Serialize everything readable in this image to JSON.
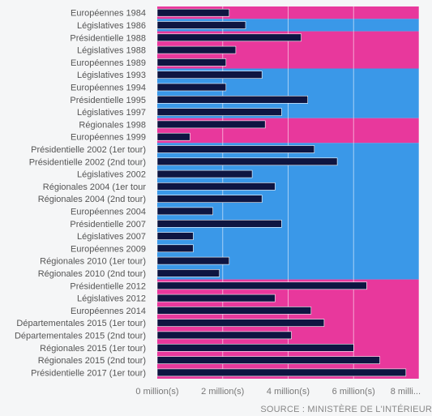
{
  "chart_data": {
    "type": "bar",
    "orientation": "horizontal",
    "categories": [
      "Européennes 1984",
      "Législatives 1986",
      "Présidentielle 1988",
      "Législatives 1988",
      "Européennes 1989",
      "Législatives 1993",
      "Européennes 1994",
      "Présidentielle 1995",
      "Législatives 1997",
      "Régionales 1998",
      "Européennes 1999",
      "Présidentielle 2002 (1er tour)",
      "Présidentielle 2002 (2nd tour)",
      "Législatives 2002",
      "Régionales 2004 (1er tour",
      "Régionales 2004 (2nd tour)",
      "Européennes 2004",
      "Présidentielle 2007",
      "Législatives 2007",
      "Européennes 2009",
      "Régionales 2010 (1er tour)",
      "Régionales 2010 (2nd tour)",
      "Présidentielle 2012",
      "Législatives 2012",
      "Européennes 2014",
      "Départementales 2015 (1er tour)",
      "Départementales 2015 (2nd tour)",
      "Régionales 2015 (1er tour)",
      "Régionales 2015 (2nd tour)",
      "Présidentielle 2017 (1er tour)"
    ],
    "values": [
      2.2,
      2.7,
      4.4,
      2.4,
      2.1,
      3.2,
      2.1,
      4.6,
      3.8,
      3.3,
      1.0,
      4.8,
      5.5,
      2.9,
      3.6,
      3.2,
      1.7,
      3.8,
      1.1,
      1.1,
      2.2,
      1.9,
      6.4,
      3.6,
      4.7,
      5.1,
      4.1,
      6.0,
      6.8,
      7.6
    ],
    "xlim": [
      0,
      8
    ],
    "xticks": [
      0,
      2,
      4,
      6,
      8
    ],
    "xtick_labels": [
      "0 million(s)",
      "2 million(s)",
      "4 million(s)",
      "6 million(s)",
      "8 milli..."
    ],
    "grid": true,
    "bar_color": "#0e1541",
    "background_bands": [
      {
        "from": "Européennes 1984",
        "to": "Européennes 1984",
        "color": "#e8389c"
      },
      {
        "from": "Législatives 1986",
        "to": "Législatives 1986",
        "color": "#3a98e8"
      },
      {
        "from": "Présidentielle 1988",
        "to": "Européennes 1989",
        "color": "#e8389c"
      },
      {
        "from": "Législatives 1993",
        "to": "Législatives 1997",
        "color": "#3a98e8"
      },
      {
        "from": "Régionales 1998",
        "to": "Européennes 1999",
        "color": "#e8389c"
      },
      {
        "from": "Présidentielle 2002 (1er tour)",
        "to": "Régionales 2010 (2nd tour)",
        "color": "#3a98e8"
      },
      {
        "from": "Présidentielle 2012",
        "to": "Présidentielle 2017 (1er tour)",
        "color": "#e8389c"
      }
    ]
  },
  "source": "SOURCE : MINISTÈRE DE L'INTÉRIEUR"
}
